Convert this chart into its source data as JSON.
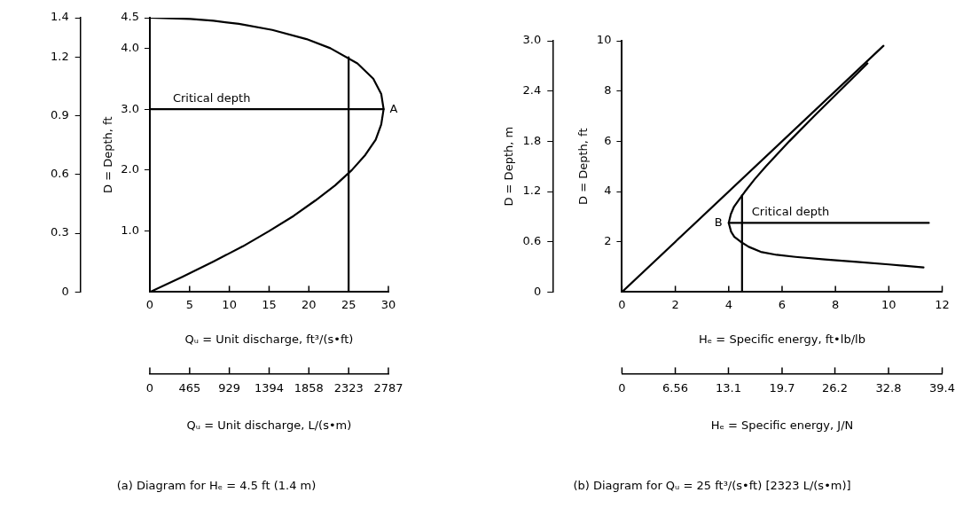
{
  "chart_data": [
    {
      "type": "line",
      "title": "(a) Diagram for Hₑ = 4.5 ft (1.4 m)",
      "xlabel": "Qᵤ = Unit discharge, ft³/(s•ft)",
      "x2label": "Qᵤ = Unit discharge, L/(s•m)",
      "ylabel": "D = Depth, ft",
      "xlim": [
        0,
        30
      ],
      "xticks": [
        0,
        5,
        10,
        15,
        20,
        25,
        30
      ],
      "x2lim": [
        0,
        2787
      ],
      "x2ticks": [
        0,
        465,
        929,
        1394,
        1858,
        2323,
        2787
      ],
      "ylim": [
        0,
        4.5
      ],
      "yticks": [
        {
          "value": 1,
          "label": "1.0"
        },
        {
          "value": 2,
          "label": "2.0"
        },
        {
          "value": 3,
          "label": "3.0"
        },
        {
          "value": 4,
          "label": "4.0"
        },
        4.5
      ],
      "y2lim": [
        0,
        1.4
      ],
      "y2ticks": [
        0,
        0.3,
        0.6,
        0.9,
        1.2,
        1.4
      ],
      "series": [
        {
          "color": "#000000",
          "x": [
            0,
            4.1,
            8.0,
            11.7,
            15.0,
            18.1,
            20.8,
            23.3,
            25.4,
            27.1,
            28.4,
            29.1,
            29.4,
            29.1,
            28.1,
            26.1,
            22.7,
            19.7,
            15.4,
            11.2,
            8.0,
            5.1,
            0
          ],
          "values": [
            0,
            0.25,
            0.5,
            0.75,
            1.0,
            1.25,
            1.5,
            1.75,
            2.0,
            2.25,
            2.5,
            2.75,
            3.0,
            3.25,
            3.5,
            3.75,
            4.0,
            4.15,
            4.3,
            4.4,
            4.45,
            4.48,
            4.5
          ]
        },
        {
          "name": "Critical depth",
          "color": "#000000",
          "x": [
            0,
            29.4
          ],
          "values": [
            3,
            3
          ]
        },
        {
          "color": "#000000",
          "x": [
            25,
            25
          ],
          "values": [
            0,
            3.85
          ]
        }
      ],
      "annotations": [
        {
          "text": "A",
          "x": 29.4,
          "y": 3
        }
      ]
    },
    {
      "type": "line",
      "title": "(b) Diagram for Qᵤ = 25 ft³/(s•ft) [2323 L/(s•m)]",
      "xlabel": "Hₑ = Specific energy, ft•lb/lb",
      "x2label": "Hₑ = Specific energy, J/N",
      "ylabel": "D = Depth, ft",
      "y2label": "D = Depth, m",
      "xlim": [
        0,
        12
      ],
      "xticks": [
        0,
        2,
        4,
        6,
        8,
        10,
        12
      ],
      "x2lim": [
        0,
        39.4
      ],
      "x2ticks": [
        0,
        6.56,
        13.1,
        19.7,
        26.2,
        32.8,
        39.4
      ],
      "ylim": [
        0,
        10
      ],
      "yticks": [
        2,
        4,
        6,
        8,
        10
      ],
      "y2lim": [
        0,
        3
      ],
      "y2ticks": [
        0,
        0.6,
        1.2,
        1.8,
        2.4,
        {
          "value": 3,
          "label": "3.0"
        }
      ],
      "series": [
        {
          "color": "#000000",
          "x": [
            0,
            9.8
          ],
          "values": [
            0,
            9.8
          ]
        },
        {
          "color": "#000000",
          "x": [
            11.3,
            10.0,
            8.8,
            7.6,
            6.5,
            5.8,
            5.2,
            4.75,
            4.45,
            4.21,
            4.09,
            4.0,
            4.08,
            4.2,
            4.4,
            4.61,
            4.98,
            5.39,
            6.27,
            7.2,
            8.15,
            9.2
          ],
          "values": [
            0.98,
            1.1,
            1.2,
            1.3,
            1.4,
            1.48,
            1.6,
            1.8,
            2.0,
            2.2,
            2.4,
            2.75,
            3.1,
            3.4,
            3.7,
            4.0,
            4.5,
            5.0,
            6.0,
            7.0,
            8.0,
            9.1
          ]
        },
        {
          "name": "Critical depth",
          "color": "#000000",
          "x": [
            4.0,
            11.5
          ],
          "values": [
            2.75,
            2.75
          ]
        },
        {
          "color": "#000000",
          "x": [
            4.5,
            4.5
          ],
          "values": [
            0,
            3.85
          ]
        }
      ],
      "annotations": [
        {
          "text": "B",
          "x": 4.0,
          "y": 2.75
        }
      ]
    }
  ]
}
